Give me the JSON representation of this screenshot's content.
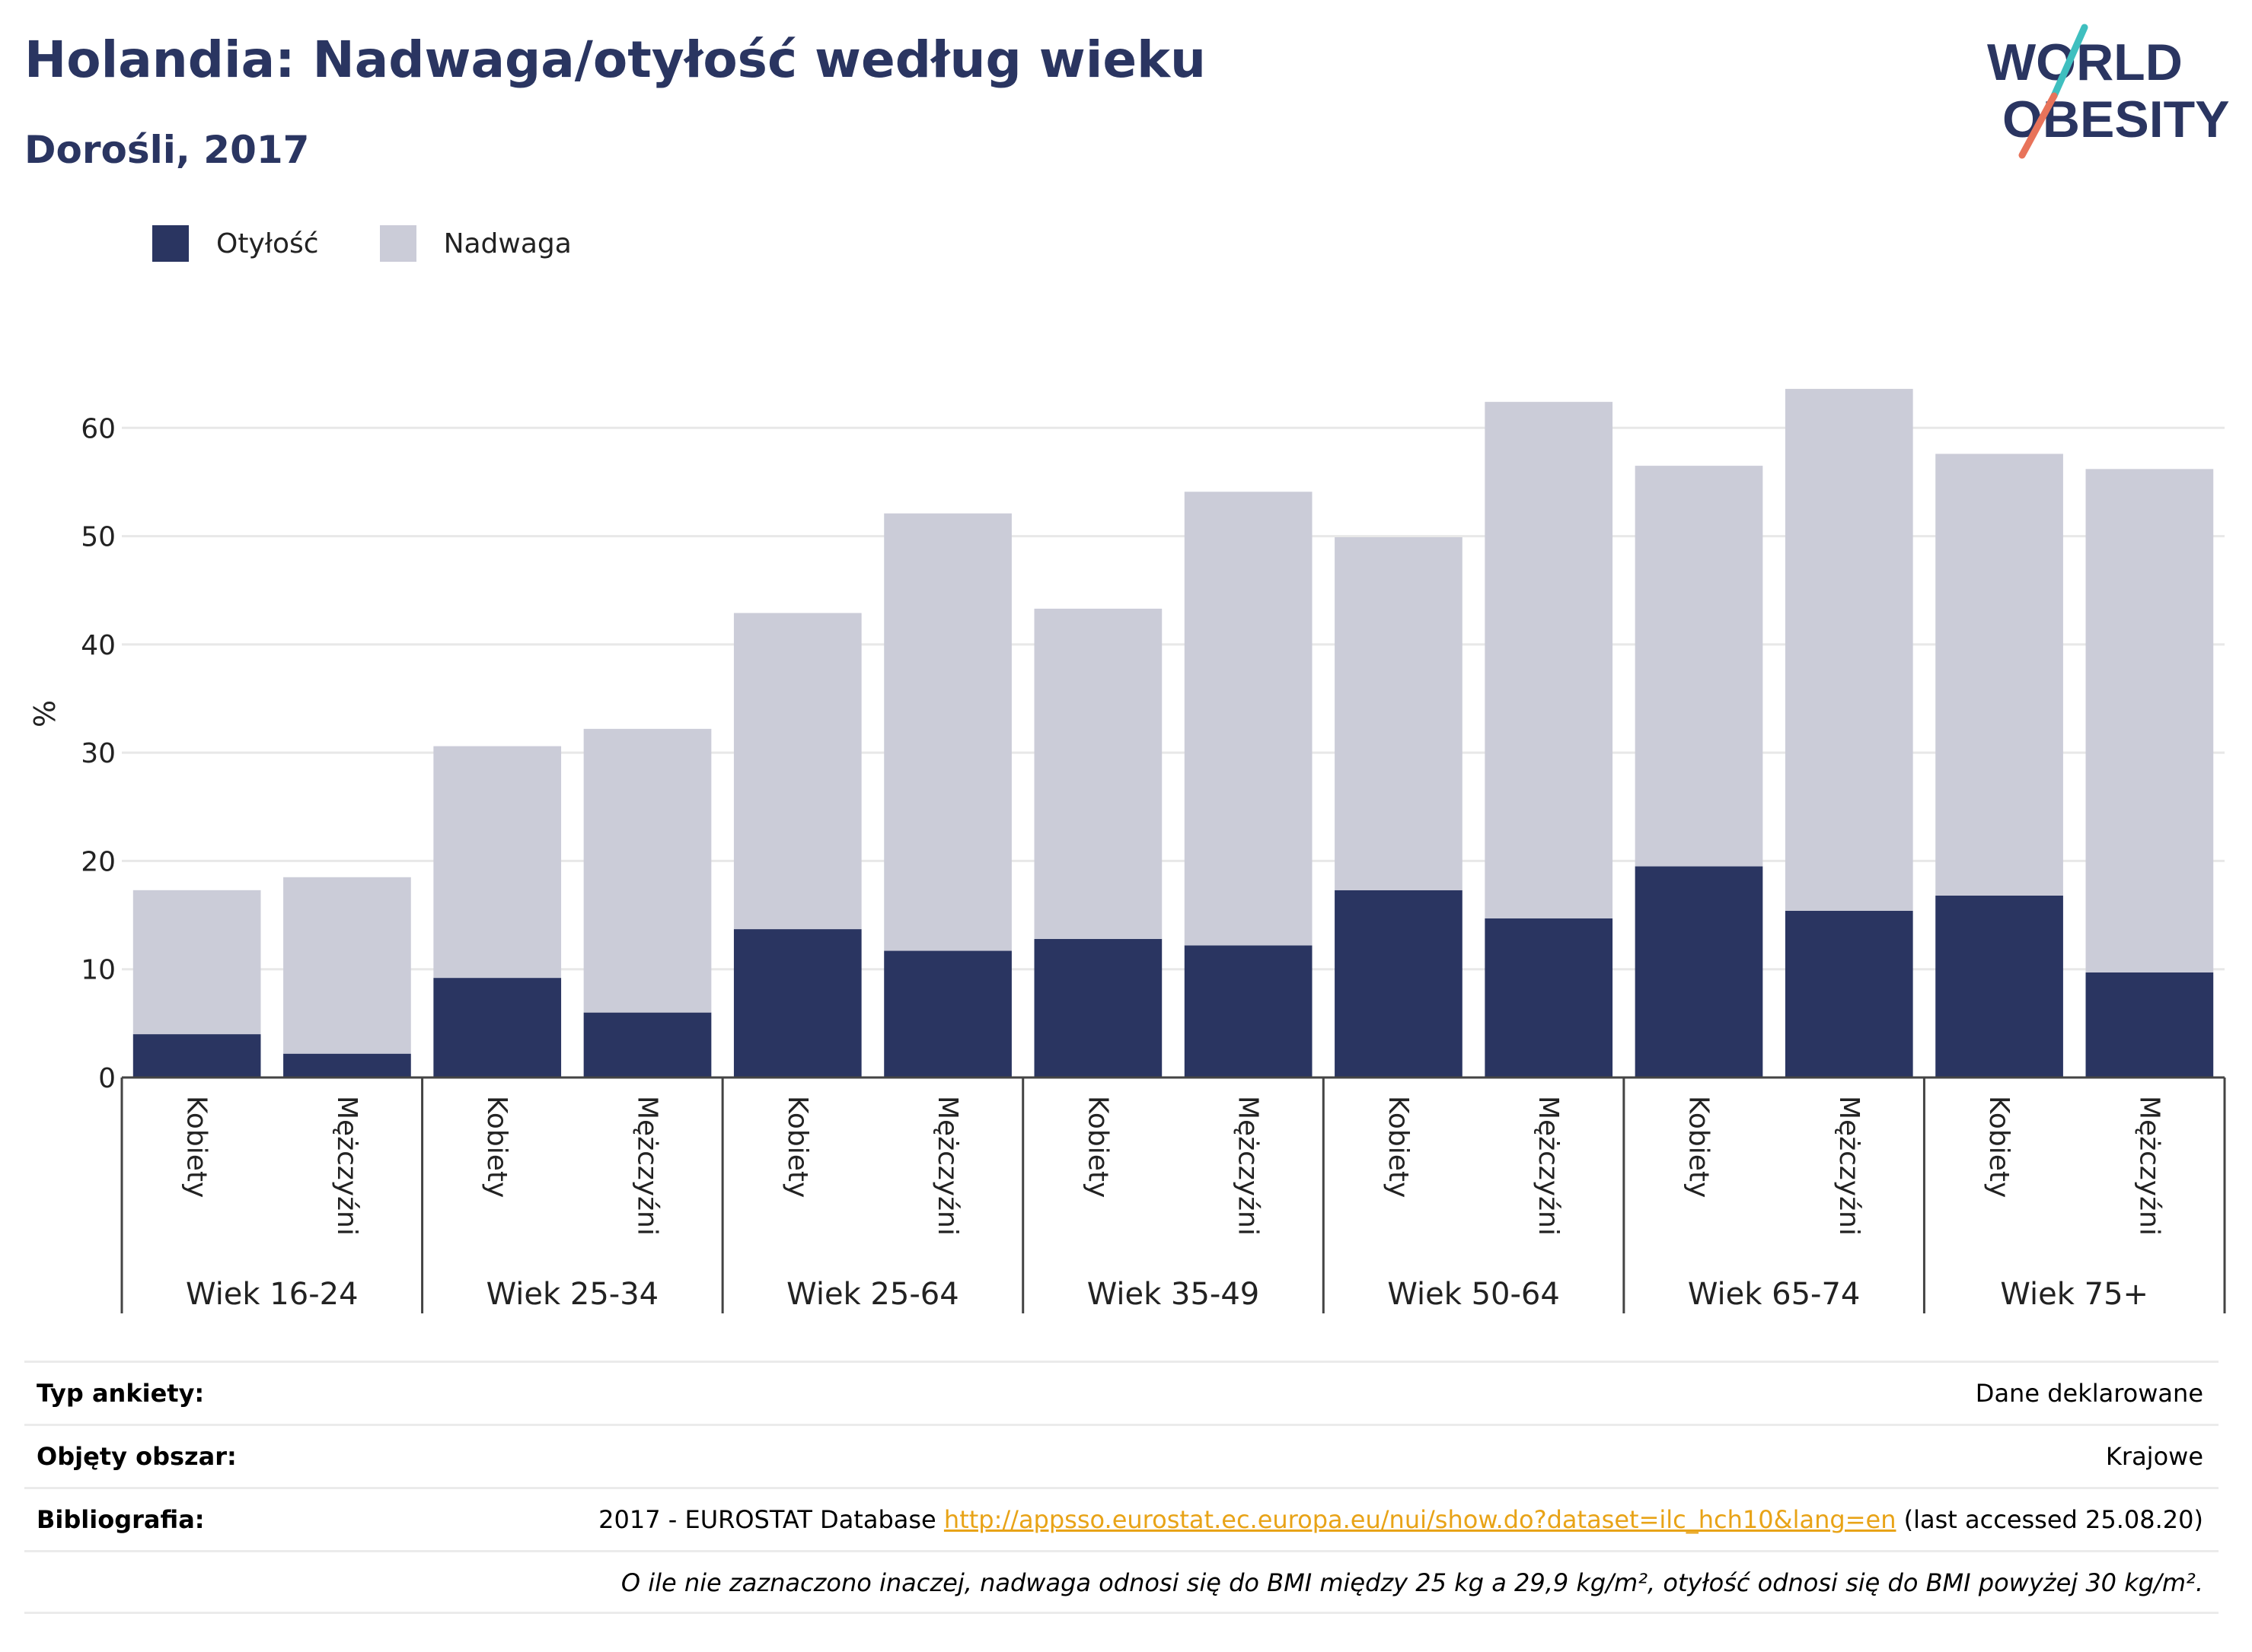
{
  "header": {
    "title": "Holandia: Nadwaga/otyłość według wieku",
    "subtitle": "Dorośli, 2017"
  },
  "logo": {
    "line1": "WORLD",
    "line2": "OBESITY",
    "text_color": "#2a3561",
    "slash_colors": [
      "#3fbfbf",
      "#e8735a"
    ]
  },
  "legend": {
    "items": [
      {
        "label": "Otyłość",
        "color": "#2a3561"
      },
      {
        "label": "Nadwaga",
        "color": "#cbccd8"
      }
    ]
  },
  "chart_data": {
    "type": "bar",
    "stacked": true,
    "ylabel": "%",
    "ylim": [
      0,
      70
    ],
    "yticks": [
      0,
      10,
      20,
      30,
      40,
      50,
      60
    ],
    "grid": true,
    "legend_position": "top-left",
    "groups": [
      "Wiek 16-24",
      "Wiek 25-34",
      "Wiek 25-64",
      "Wiek 35-49",
      "Wiek 50-64",
      "Wiek 65-74",
      "Wiek 75+"
    ],
    "subcategories": [
      "Kobiety",
      "Mężczyźni"
    ],
    "series": [
      {
        "name": "Otyłość",
        "color": "#2a3561",
        "values": [
          4,
          2.2,
          9.2,
          6,
          13.7,
          11.7,
          12.8,
          12.2,
          17.3,
          14.7,
          19.5,
          15.4,
          16.8,
          9.7
        ]
      },
      {
        "name": "Nadwaga",
        "color": "#cbccd8",
        "values": [
          13.3,
          16.3,
          21.4,
          26.2,
          29.2,
          40.4,
          30.5,
          41.9,
          32.6,
          47.7,
          37,
          48.2,
          40.8,
          46.5
        ]
      }
    ]
  },
  "info": {
    "rows": [
      {
        "label": "Typ ankiety:",
        "value": "Dane deklarowane"
      },
      {
        "label": "Objęty obszar:",
        "value": "Krajowe"
      },
      {
        "label": "Bibliografia:",
        "value_prefix": "2017 - EUROSTAT Database ",
        "link": "http://appsso.eurostat.ec.europa.eu/nui/show.do?dataset=ilc_hch10&lang=en",
        "value_suffix": " (last accessed 25.08.20)"
      }
    ],
    "note": "O ile nie zaznaczono inaczej, nadwaga odnosi się do BMI między 25 kg a 29,9 kg/m², otyłość odnosi się do BMI powyżej 30 kg/m²."
  }
}
